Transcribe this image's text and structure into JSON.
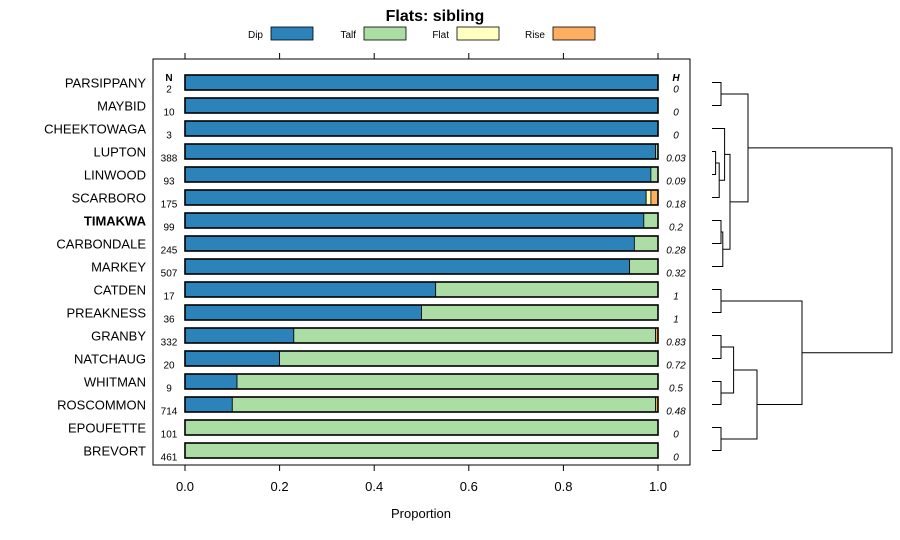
{
  "chart_data": {
    "type": "bar",
    "orientation": "horizontal",
    "stacked": true,
    "title": "Flats: sibling",
    "xlabel": "Proportion",
    "xlim": [
      0,
      1
    ],
    "xticks": [
      "0.0",
      "0.2",
      "0.4",
      "0.6",
      "0.8",
      "1.0"
    ],
    "n_header": "N",
    "h_header": "H",
    "highlighted": "TIMAKWA",
    "series": [
      {
        "name": "Dip",
        "color": "#2b83ba"
      },
      {
        "name": "Talf",
        "color": "#abdda4"
      },
      {
        "name": "Flat",
        "color": "#ffffbf"
      },
      {
        "name": "Rise",
        "color": "#fdae61"
      }
    ],
    "rows": [
      {
        "label": "PARSIPPANY",
        "n": "2",
        "h": "0",
        "values": [
          1.0,
          0.0,
          0.0,
          0.0
        ]
      },
      {
        "label": "MAYBID",
        "n": "10",
        "h": "0",
        "values": [
          1.0,
          0.0,
          0.0,
          0.0
        ]
      },
      {
        "label": "CHEEKTOWAGA",
        "n": "3",
        "h": "0",
        "values": [
          1.0,
          0.0,
          0.0,
          0.0
        ]
      },
      {
        "label": "LUPTON",
        "n": "388",
        "h": "0.03",
        "values": [
          0.995,
          0.005,
          0.0,
          0.0
        ]
      },
      {
        "label": "LINWOOD",
        "n": "93",
        "h": "0.09",
        "values": [
          0.985,
          0.015,
          0.0,
          0.0
        ]
      },
      {
        "label": "SCARBORO",
        "n": "175",
        "h": "0.18",
        "values": [
          0.975,
          0.0,
          0.01,
          0.015
        ]
      },
      {
        "label": "TIMAKWA",
        "n": "99",
        "h": "0.2",
        "values": [
          0.97,
          0.03,
          0.0,
          0.0
        ]
      },
      {
        "label": "CARBONDALE",
        "n": "245",
        "h": "0.28",
        "values": [
          0.95,
          0.05,
          0.0,
          0.0
        ]
      },
      {
        "label": "MARKEY",
        "n": "507",
        "h": "0.32",
        "values": [
          0.94,
          0.06,
          0.0,
          0.0
        ]
      },
      {
        "label": "CATDEN",
        "n": "17",
        "h": "1",
        "values": [
          0.53,
          0.47,
          0.0,
          0.0
        ]
      },
      {
        "label": "PREAKNESS",
        "n": "36",
        "h": "1",
        "values": [
          0.5,
          0.5,
          0.0,
          0.0
        ]
      },
      {
        "label": "GRANBY",
        "n": "332",
        "h": "0.83",
        "values": [
          0.23,
          0.765,
          0.0,
          0.005
        ]
      },
      {
        "label": "NATCHAUG",
        "n": "20",
        "h": "0.72",
        "values": [
          0.2,
          0.8,
          0.0,
          0.0
        ]
      },
      {
        "label": "WHITMAN",
        "n": "9",
        "h": "0.5",
        "values": [
          0.11,
          0.89,
          0.0,
          0.0
        ]
      },
      {
        "label": "ROSCOMMON",
        "n": "714",
        "h": "0.48",
        "values": [
          0.1,
          0.895,
          0.0,
          0.005
        ]
      },
      {
        "label": "EPOUFETTE",
        "n": "101",
        "h": "0",
        "values": [
          0.0,
          1.0,
          0.0,
          0.0
        ]
      },
      {
        "label": "BREVORT",
        "n": "461",
        "h": "0",
        "values": [
          0.0,
          1.0,
          0.0,
          0.0
        ]
      }
    ],
    "dendrogram": {
      "merges": [
        [
          -1,
          -2,
          0.05
        ],
        [
          -4,
          -5,
          0.02
        ],
        [
          1,
          -6,
          0.04
        ],
        [
          2,
          -3,
          0.07
        ],
        [
          -7,
          -8,
          0.05
        ],
        [
          -9,
          4,
          0.06
        ],
        [
          3,
          5,
          0.1
        ],
        [
          0,
          6,
          0.2
        ],
        [
          -10,
          -11,
          0.05
        ],
        [
          -12,
          -13,
          0.05
        ],
        [
          -14,
          -15,
          0.05
        ],
        [
          9,
          10,
          0.12
        ],
        [
          -16,
          -17,
          0.05
        ],
        [
          11,
          12,
          0.25
        ],
        [
          8,
          13,
          0.5
        ],
        [
          7,
          14,
          1.0
        ]
      ],
      "order": [
        1,
        2,
        3,
        4,
        5,
        6,
        7,
        8,
        9,
        10,
        11,
        12,
        13,
        14,
        15,
        16,
        17
      ]
    }
  }
}
